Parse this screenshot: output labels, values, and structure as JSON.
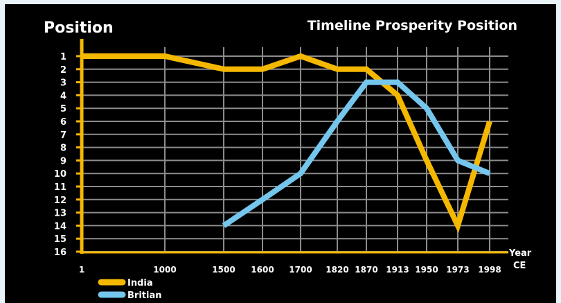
{
  "chart_data": {
    "type": "line",
    "title": "Timeline Prosperity Position",
    "ylabel": "Position",
    "xlabel_line1": "Year",
    "xlabel_line2": "CE",
    "categories": [
      "1",
      "1000",
      "1500",
      "1600",
      "1700",
      "1820",
      "1870",
      "1913",
      "1950",
      "1973",
      "1998"
    ],
    "y_ticks": [
      "1",
      "2",
      "3",
      "4",
      "5",
      "6",
      "7",
      "8",
      "9",
      "10",
      "11",
      "12",
      "13",
      "14",
      "15",
      "16"
    ],
    "ylim": [
      1,
      16
    ],
    "y_inverted": true,
    "grid": true,
    "legend": "bottom-left",
    "series": [
      {
        "name": "India",
        "color": "#f5b800",
        "values": [
          1,
          1,
          2,
          2,
          1,
          2,
          2,
          4,
          9,
          14,
          6
        ]
      },
      {
        "name": "Britian",
        "color": "#74c6ec",
        "values": [
          null,
          null,
          14,
          12,
          10,
          6,
          3,
          3,
          5,
          9,
          10
        ]
      }
    ]
  },
  "colors": {
    "axis": "#f5b800",
    "grid": "#8c8c8c",
    "text": "#ffffff",
    "background": "#000000",
    "frame": "#e8f3f9"
  }
}
